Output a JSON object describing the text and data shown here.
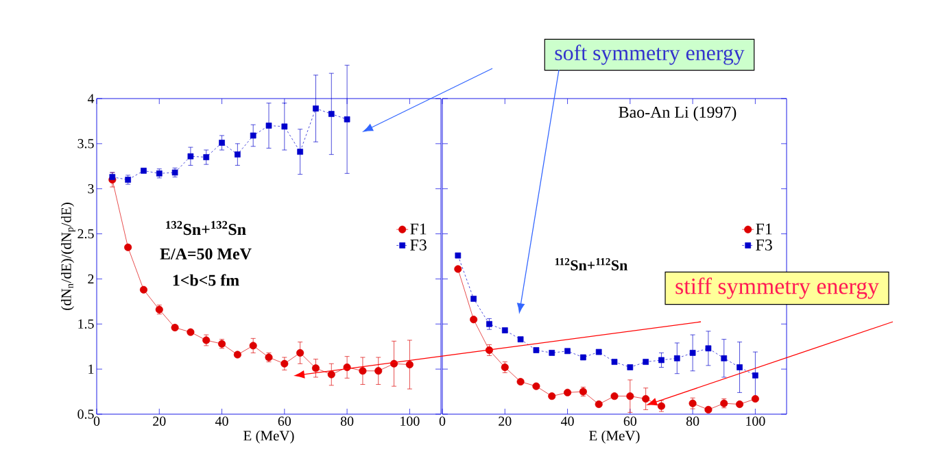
{
  "chart_data": [
    {
      "type": "line",
      "xlabel": "E (MeV)",
      "ylabel": "(dN$_{n}$/dE)/(dN$_{p}$/dE)",
      "xlim": [
        0,
        110
      ],
      "ylim": [
        0.5,
        4
      ],
      "xticks": [
        0,
        20,
        40,
        60,
        80,
        100
      ],
      "yticks": [
        0.5,
        1,
        1.5,
        2,
        2.5,
        3,
        3.5,
        4
      ],
      "legend": "right",
      "annotations": [
        "soft symmetry energy",
        "**$^{132}$Sn+$^{132}$Sn**",
        "**E/A=50 MeV**",
        "**1<b<5 fm**"
      ],
      "series": [
        {
          "name": "F1",
          "color": "#dd0000",
          "marker": "circle",
          "line_style": "solid",
          "x": [
            5,
            10,
            15,
            20,
            25,
            30,
            35,
            40,
            45,
            50,
            55,
            60,
            65,
            70,
            75,
            80,
            85,
            90,
            95,
            100
          ],
          "values": [
            3.1,
            2.35,
            1.88,
            1.66,
            1.46,
            1.41,
            1.32,
            1.28,
            1.16,
            1.26,
            1.13,
            1.06,
            1.18,
            1.01,
            0.94,
            1.02,
            0.98,
            0.98,
            1.06,
            1.05
          ],
          "errors": [
            0.08,
            null,
            null,
            0.05,
            null,
            null,
            0.06,
            0.05,
            null,
            0.08,
            0.05,
            0.07,
            0.12,
            0.1,
            0.12,
            0.12,
            0.15,
            0.15,
            0.25,
            0.27
          ]
        },
        {
          "name": "F3",
          "color": "#0000cc",
          "marker": "square",
          "line_style": "dashed",
          "x": [
            5,
            10,
            15,
            20,
            25,
            30,
            35,
            40,
            45,
            50,
            55,
            60,
            65,
            70,
            75,
            80
          ],
          "values": [
            3.13,
            3.1,
            3.2,
            3.17,
            3.18,
            3.36,
            3.35,
            3.51,
            3.38,
            3.59,
            3.7,
            3.69,
            3.41,
            3.89,
            3.83,
            3.77
          ],
          "errors": [
            0.05,
            0.05,
            null,
            0.05,
            0.05,
            0.1,
            0.08,
            0.08,
            0.12,
            0.12,
            0.25,
            0.26,
            0.25,
            0.37,
            0.45,
            0.6
          ]
        }
      ]
    },
    {
      "type": "line",
      "xlabel": "E (MeV)",
      "xlim": [
        0,
        110
      ],
      "ylim": [
        0.5,
        4
      ],
      "xticks": [
        0,
        20,
        40,
        60,
        80,
        100
      ],
      "yticks": [
        0.5,
        1,
        1.5,
        2,
        2.5,
        3,
        3.5,
        4
      ],
      "tick_labels": "x",
      "legend": "right",
      "annotations": [
        "Bao-An Li (1997)",
        "**$^{112}$Sn+$^{112}$Sn**",
        "stiff symmetry energy"
      ],
      "series": [
        {
          "name": "F1",
          "color": "#dd0000",
          "marker": "circle",
          "line_style": "solid",
          "x": [
            5,
            10,
            15,
            20,
            25,
            30,
            35,
            40,
            45,
            50,
            55,
            60,
            65,
            70,
            75,
            80,
            85,
            90,
            95,
            100
          ],
          "values": [
            2.11,
            1.55,
            1.21,
            1.02,
            0.86,
            0.81,
            0.7,
            0.74,
            0.75,
            0.61,
            0.7,
            0.7,
            0.67,
            0.59,
            null,
            0.62,
            0.55,
            0.62,
            0.61,
            0.67
          ],
          "errors": [
            null,
            null,
            0.06,
            0.06,
            null,
            null,
            null,
            null,
            0.05,
            null,
            null,
            0.18,
            0.12,
            0.06,
            null,
            0.06,
            null,
            0.05,
            null,
            null
          ]
        },
        {
          "name": "F3",
          "color": "#0000cc",
          "marker": "square",
          "line_style": "dashed",
          "x": [
            5,
            10,
            15,
            20,
            25,
            30,
            35,
            40,
            45,
            50,
            55,
            60,
            65,
            70,
            75,
            80,
            85,
            90,
            95,
            100
          ],
          "values": [
            2.26,
            1.78,
            1.5,
            1.43,
            1.33,
            1.21,
            1.18,
            1.2,
            1.13,
            1.19,
            1.08,
            1.02,
            1.08,
            1.1,
            1.12,
            1.18,
            1.23,
            1.12,
            1.02,
            0.93
          ],
          "errors": [
            null,
            null,
            0.06,
            null,
            null,
            null,
            null,
            null,
            null,
            null,
            null,
            null,
            null,
            0.08,
            0.17,
            0.2,
            0.19,
            0.21,
            0.28,
            0.26
          ]
        }
      ]
    }
  ]
}
